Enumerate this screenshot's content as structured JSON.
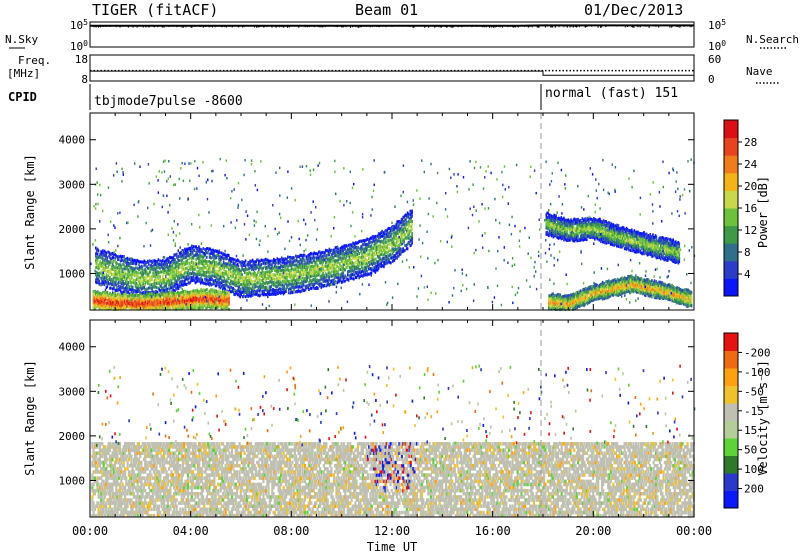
{
  "header": {
    "radar": "TIGER (fitACF)",
    "beam": "Beam 01",
    "date": "01/Dec/2013"
  },
  "chart_data": [
    {
      "type": "line",
      "panel": "noise",
      "left_label": "N.Sky",
      "right_label": "N.Search",
      "left_ticks": [
        "10^5",
        "10^0"
      ],
      "right_ticks": [
        "10^5",
        "10^0"
      ],
      "series": [
        {
          "name": "N.Sky",
          "style": "solid"
        },
        {
          "name": "N.Search",
          "style": "dotted"
        }
      ],
      "x": [
        0,
        1,
        2,
        3,
        4,
        5,
        6,
        7,
        8,
        9,
        10,
        11,
        12,
        13,
        14,
        15,
        16,
        17,
        18,
        19,
        20,
        21,
        22,
        23,
        24
      ],
      "y": [
        4.6,
        4.6,
        4.6,
        4.6,
        4.6,
        4.6,
        4.6,
        4.6,
        4.6,
        4.6,
        4.6,
        4.6,
        4.6,
        4.6,
        4.6,
        4.6,
        4.6,
        4.6,
        4.7,
        4.7,
        4.7,
        4.7,
        4.7,
        4.7,
        4.7
      ]
    },
    {
      "type": "line",
      "panel": "frequency",
      "left_label_top": "Freq.",
      "left_label_bottom": "[MHz]",
      "right_label": "Nave",
      "left_ticks": [
        "18",
        "8"
      ],
      "right_ticks": [
        "60",
        "0"
      ],
      "series": [
        {
          "name": "Freq.",
          "style": "solid"
        },
        {
          "name": "Nave",
          "style": "dotted"
        }
      ],
      "freq": {
        "x": [
          0,
          18,
          18,
          24
        ],
        "y": [
          11.8,
          11.8,
          10.2,
          10.2
        ]
      },
      "nave": {
        "x": [
          0,
          24
        ],
        "y": [
          24,
          24
        ]
      }
    },
    {
      "type": "table",
      "panel": "cpid",
      "label": "CPID",
      "segments": [
        {
          "start": 0,
          "end": 18,
          "text": "tbjmode7pulse -8600"
        },
        {
          "start": 18,
          "end": 24,
          "text": "normal (fast) 151"
        }
      ]
    },
    {
      "type": "heatmap",
      "panel": "power",
      "ylabel": "Slant Range [km]",
      "yticks": [
        1000,
        2000,
        3000,
        4000
      ],
      "ylim": [
        180,
        4600
      ],
      "xlim": [
        0,
        24
      ],
      "colorbar": {
        "label": "Power [dB]",
        "ticks": [
          "4",
          "8",
          "12",
          "16",
          "20",
          "24",
          "28"
        ],
        "colors": [
          "#0a14ff",
          "#2a3cc8",
          "#2f6f8a",
          "#3f9a48",
          "#6cc23a",
          "#c8d84a",
          "#f2b416",
          "#f07c1c",
          "#e8431e",
          "#dd0f14"
        ]
      },
      "bands": [
        {
          "x": [
            0.2,
            1.0,
            2.0,
            3.0,
            4.0,
            5.0,
            6.0,
            7.0,
            8.0,
            9.0,
            10.0,
            11.0,
            12.0,
            12.8
          ],
          "y": [
            1200,
            1050,
            900,
            950,
            1250,
            1150,
            900,
            950,
            1000,
            1100,
            1250,
            1400,
            1700,
            2100
          ],
          "width": 380,
          "level": 0.55
        },
        {
          "x": [
            0.1,
            1.0,
            2.0,
            3.0,
            4.5,
            5.5
          ],
          "y": [
            430,
            380,
            360,
            400,
            470,
            430
          ],
          "width": 180,
          "level": 0.95
        },
        {
          "x": [
            18.1,
            19.0,
            20.0,
            21.0,
            22.0,
            23.4
          ],
          "y": [
            2150,
            2000,
            2050,
            1850,
            1700,
            1500
          ],
          "width": 220,
          "level": 0.55
        },
        {
          "x": [
            18.2,
            19.0,
            20.0,
            21.5,
            23.0,
            23.9
          ],
          "y": [
            400,
            350,
            600,
            800,
            600,
            450
          ],
          "width": 160,
          "level": 0.75
        }
      ]
    },
    {
      "type": "heatmap",
      "panel": "velocity",
      "ylabel": "Slant Range [km]",
      "yticks": [
        1000,
        2000,
        3000,
        4000
      ],
      "ylim": [
        180,
        4600
      ],
      "xlim": [
        0,
        24
      ],
      "xticks": [
        "00:00",
        "04:00",
        "08:00",
        "12:00",
        "16:00",
        "20:00",
        "00:00"
      ],
      "xlabel": "Time UT",
      "colorbar": {
        "label": "Velocity [m s⁻¹]",
        "ticks": [
          "200",
          "100",
          "50",
          "15",
          "-15",
          "-50",
          "-100",
          "-200"
        ],
        "colors": [
          "#0a18ff",
          "#2a38cc",
          "#2f7a2a",
          "#5fd23a",
          "#b4ce9a",
          "#c0c0b2",
          "#f0c22a",
          "#ffa010",
          "#f06a14",
          "#e61210"
        ]
      },
      "marker_time": 18.0
    }
  ]
}
